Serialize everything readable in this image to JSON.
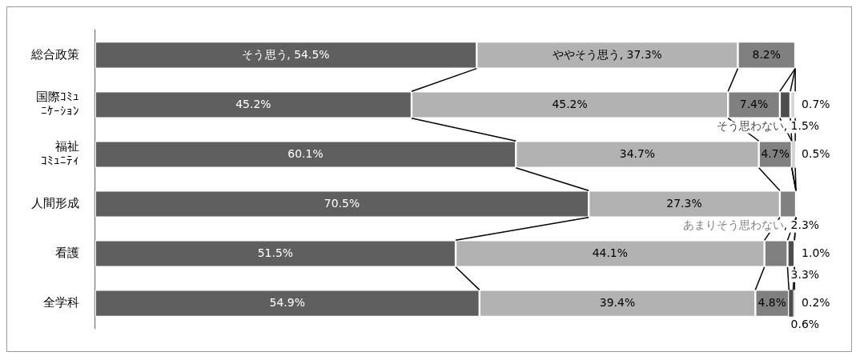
{
  "chart_data": {
    "type": "bar",
    "orientation": "horizontal",
    "stacked": true,
    "tick_labels": "y",
    "grid": false,
    "legend": false,
    "xlim": [
      0,
      100
    ],
    "categories": [
      "総合政策",
      "国際ｺﾐｭﾆｹｰｼｮﾝ",
      "福祉ｺﾐｭﾆﾃｨ",
      "人間形成",
      "看護",
      "全学科"
    ],
    "series": [
      {
        "name": "そう思う",
        "color": "#5f5f5f",
        "values": [
          54.5,
          45.2,
          60.1,
          70.5,
          51.5,
          54.9
        ],
        "value_labels": [
          ", 54.5%",
          "45.2%",
          "60.1%",
          "70.5%",
          "51.5%",
          "54.9%"
        ]
      },
      {
        "name": "ややそう思う",
        "color": "#b2b2b2",
        "values": [
          37.3,
          45.2,
          34.7,
          27.3,
          44.1,
          39.4
        ],
        "value_labels": [
          ", 37.3%",
          "45.2%",
          "34.7%",
          "27.3%",
          "44.1%",
          "39.4%"
        ]
      },
      {
        "name": "あまりそう思わない",
        "color": "#808080",
        "values": [
          8.2,
          7.4,
          4.7,
          2.3,
          3.3,
          4.8
        ],
        "value_labels": [
          "8.2%",
          "7.4%",
          "4.7%",
          ", 2.3%",
          "3.3%",
          "4.8%"
        ]
      },
      {
        "name": "そう思わない",
        "color": "#4d4d4d",
        "values": [
          null,
          1.5,
          null,
          null,
          1.0,
          0.6
        ],
        "value_labels": [
          null,
          ", 1.5%",
          null,
          null,
          "1.0%",
          "0.6%"
        ]
      },
      {
        "color": "#d4d4d4",
        "values": [
          null,
          0.7,
          0.5,
          null,
          null,
          0.2
        ],
        "value_labels": [
          null,
          "0.7%",
          "0.5%",
          null,
          null,
          "0.2%"
        ]
      }
    ]
  }
}
